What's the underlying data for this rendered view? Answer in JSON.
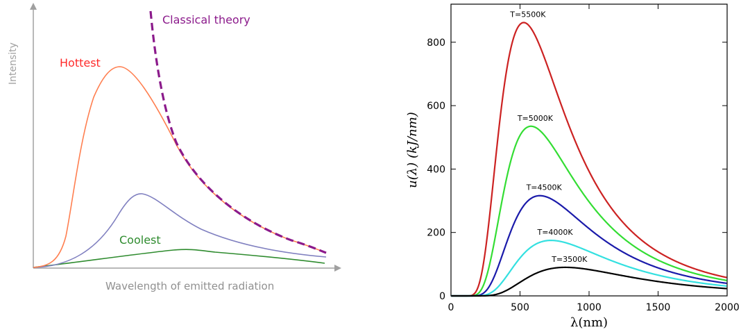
{
  "chart_data": [
    {
      "type": "line",
      "title": "",
      "xlabel": "Wavelength of emitted radiation",
      "ylabel": "Intensity",
      "ticks": "none",
      "grid": false,
      "annotations": [
        "Hottest",
        "Coolest",
        "Classical theory"
      ],
      "series": [
        {
          "name": "Hottest",
          "color": "#ff7f50",
          "style": "solid",
          "peak": "tallest, left",
          "values_relative_peak": 1.0
        },
        {
          "name": "",
          "color": "#8080c0",
          "style": "solid",
          "peak": "middle",
          "values_relative_peak": 0.37
        },
        {
          "name": "Coolest",
          "color": "#2e8b2e",
          "style": "solid",
          "peak": "lowest, right",
          "values_relative_peak": 0.09
        },
        {
          "name": "Classical theory",
          "color": "#8b1a8b",
          "style": "dashed",
          "trend": "diverges at short wavelength"
        }
      ]
    },
    {
      "type": "line",
      "title": "",
      "xlabel": "λ(nm)",
      "ylabel": "u(λ)  (kJ/nm)",
      "xlim": [
        0,
        2000
      ],
      "ylim": [
        0,
        920
      ],
      "xticks": [
        0,
        500,
        1000,
        1500,
        2000
      ],
      "yticks": [
        0,
        200,
        400,
        600,
        800
      ],
      "xtick_labels": [
        "0",
        "500",
        "1000",
        "1500",
        "2000"
      ],
      "ytick_labels": [
        "0",
        "200",
        "400",
        "600",
        "800"
      ],
      "grid": false,
      "legend": "inline labels above peaks",
      "series": [
        {
          "name": "T=5500K",
          "T": 5500,
          "color": "#cc2222",
          "peak_x": 527,
          "peak_y": 862
        },
        {
          "name": "T=5000K",
          "T": 5000,
          "color": "#33dd33",
          "peak_x": 580,
          "peak_y": 535
        },
        {
          "name": "T=4500K",
          "T": 4500,
          "color": "#1a1aaa",
          "peak_x": 644,
          "peak_y": 316
        },
        {
          "name": "T=4000K",
          "T": 4000,
          "color": "#33e0e0",
          "peak_x": 724,
          "peak_y": 175
        },
        {
          "name": "T=3500K",
          "T": 3500,
          "color": "#000000",
          "peak_x": 828,
          "peak_y": 90
        }
      ]
    }
  ]
}
